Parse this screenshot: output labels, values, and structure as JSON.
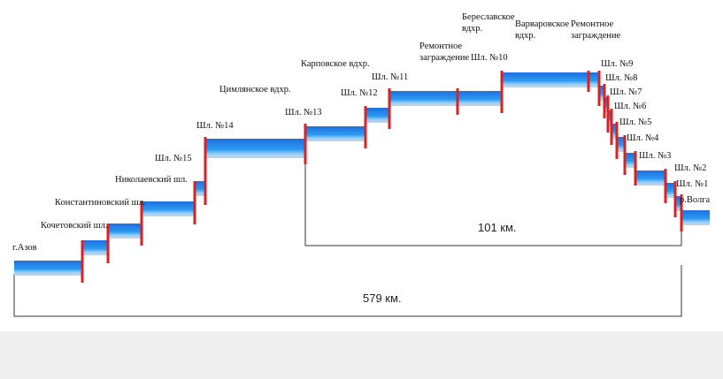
{
  "labels": [
    {
      "lines": [
        "г.Азов"
      ]
    },
    {
      "lines": [
        "Кочетовский шл."
      ]
    },
    {
      "lines": [
        "Константиновский шл."
      ]
    },
    {
      "lines": [
        "Николаевский шл."
      ]
    },
    {
      "lines": [
        "Шл. №15"
      ]
    },
    {
      "lines": [
        "Шл. №14"
      ]
    },
    {
      "lines": [
        "Цимлянское вдхр."
      ]
    },
    {
      "lines": [
        "Шл. №13"
      ]
    },
    {
      "lines": [
        "Карповское вдхр."
      ]
    },
    {
      "lines": [
        "Шл. №12"
      ]
    },
    {
      "lines": [
        "Шл. №11"
      ]
    },
    {
      "lines": [
        "Ремонтное",
        "заграждение"
      ]
    },
    {
      "lines": [
        "Береславское",
        "вдхр."
      ]
    },
    {
      "lines": [
        "Шл. №10"
      ]
    },
    {
      "lines": [
        "Варваровское",
        "вдхр."
      ]
    },
    {
      "lines": [
        "Ремонтное",
        "заграждение"
      ]
    },
    {
      "lines": [
        "Шл. №9"
      ]
    },
    {
      "lines": [
        "Шл. №8"
      ]
    },
    {
      "lines": [
        "Шл. №7"
      ]
    },
    {
      "lines": [
        "Шл. №6"
      ]
    },
    {
      "lines": [
        "Шл. №5"
      ]
    },
    {
      "lines": [
        "Шл. №4"
      ]
    },
    {
      "lines": [
        "Шл. №3"
      ]
    },
    {
      "lines": [
        "Шл. №2"
      ]
    },
    {
      "lines": [
        "Шл. №1"
      ]
    },
    {
      "lines": [
        "р.Волга"
      ]
    }
  ],
  "distances": [
    "101 км.",
    "579 км."
  ]
}
